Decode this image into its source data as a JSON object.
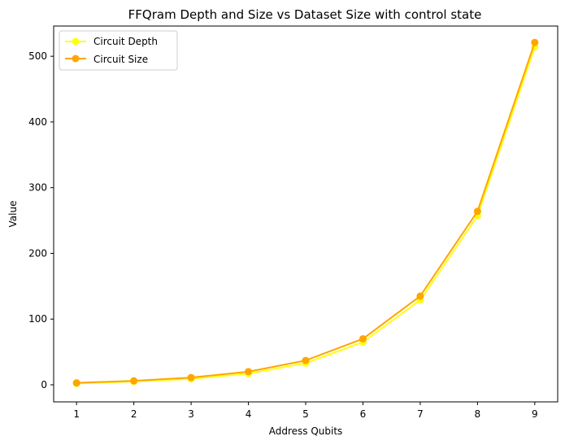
{
  "chart_data": {
    "type": "line",
    "title": "FFQram Depth and Size vs Dataset Size with control state",
    "xlabel": "Address Qubits",
    "ylabel": "Value",
    "x": [
      1,
      2,
      3,
      4,
      5,
      6,
      7,
      8,
      9
    ],
    "xlim": [
      0.6,
      9.4
    ],
    "ylim": [
      -26,
      546
    ],
    "xticks": [
      1,
      2,
      3,
      4,
      5,
      6,
      7,
      8,
      9
    ],
    "yticks": [
      0,
      100,
      200,
      300,
      400,
      500
    ],
    "grid": false,
    "legend_position": "top-left",
    "series": [
      {
        "name": "Circuit Depth",
        "color": "#FFFF14",
        "values": [
          2,
          5,
          9,
          17,
          33,
          65,
          129,
          257,
          514
        ]
      },
      {
        "name": "Circuit Size",
        "color": "#FFA500",
        "values": [
          3,
          6,
          11,
          20,
          37,
          70,
          135,
          264,
          521
        ]
      }
    ]
  }
}
